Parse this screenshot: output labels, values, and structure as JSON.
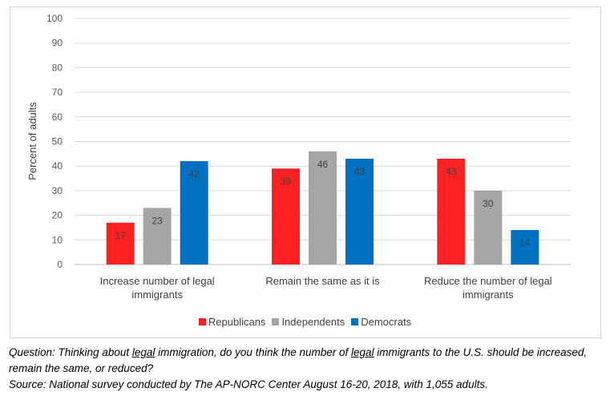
{
  "chart_data": {
    "type": "bar",
    "categories": [
      [
        "Increase number of legal",
        "immigrants"
      ],
      [
        "Remain the same as it is"
      ],
      [
        "Reduce the number of legal",
        "immigrants"
      ]
    ],
    "series": [
      {
        "name": "Republicans",
        "color": "#ff2121",
        "values": [
          17,
          39,
          43
        ]
      },
      {
        "name": "Independents",
        "color": "#a5a5a5",
        "values": [
          23,
          46,
          30
        ]
      },
      {
        "name": "Democrats",
        "color": "#0070c0",
        "values": [
          42,
          43,
          14
        ]
      }
    ],
    "ylabel": "Percent of adults",
    "ylim": [
      0,
      100
    ],
    "yticks": [
      0,
      10,
      20,
      30,
      40,
      50,
      60,
      70,
      80,
      90,
      100
    ],
    "grid": true,
    "legend": "bottom"
  },
  "caption": {
    "question_1": "Question: Thinking about ",
    "question_legal1": "legal",
    "question_2": " immigration, do you think the number of ",
    "question_legal2": "legal",
    "question_3": " immigrants to the U.S. should be increased, remain the same, or reduced?",
    "source": "Source: National survey conducted by The AP-NORC Center August 16-20, 2018, with 1,055 adults."
  }
}
